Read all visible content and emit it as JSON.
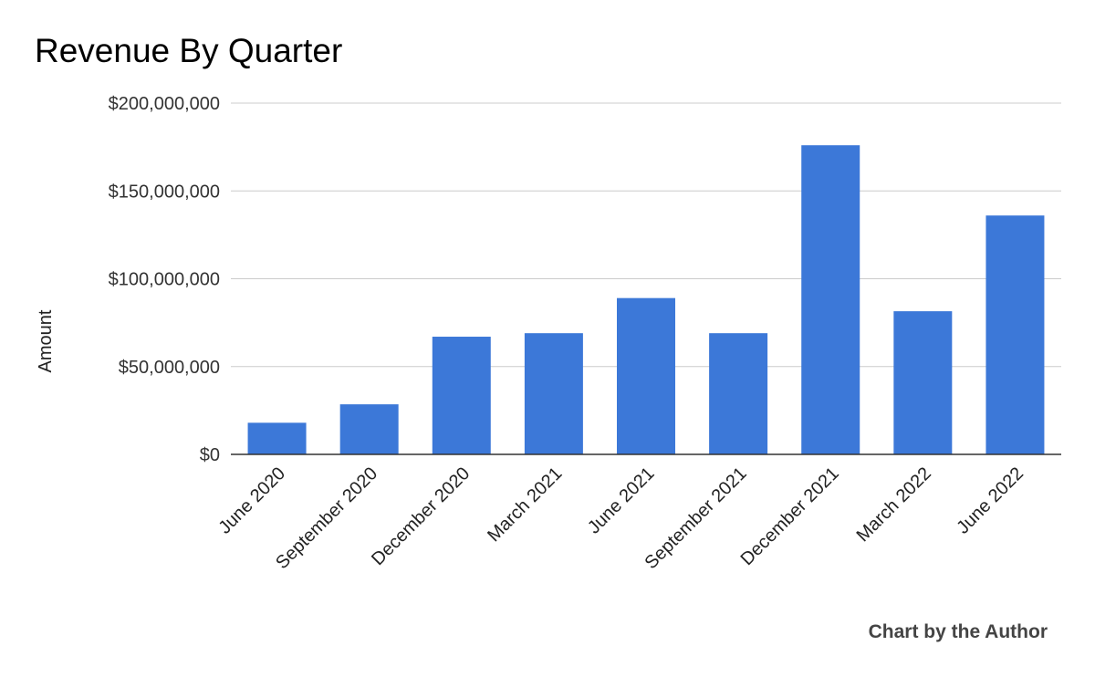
{
  "chart_data": {
    "type": "bar",
    "title": "Revenue By Quarter",
    "xlabel": "",
    "ylabel": "Amount",
    "categories": [
      "June 2020",
      "September 2020",
      "December 2020",
      "March 2021",
      "June 2021",
      "September 2021",
      "December 2021",
      "March 2022",
      "June 2022"
    ],
    "values": [
      18000000,
      28500000,
      67000000,
      69000000,
      89000000,
      69000000,
      176000000,
      81500000,
      136000000
    ],
    "ylim": [
      0,
      200000000
    ],
    "yticks": [
      0,
      50000000,
      100000000,
      150000000,
      200000000
    ],
    "ytick_labels": [
      "$0",
      "$50,000,000",
      "$100,000,000",
      "$150,000,000",
      "$200,000,000"
    ],
    "grid": true,
    "bar_color": "#3c78d8",
    "credit": "Chart by the Author"
  }
}
